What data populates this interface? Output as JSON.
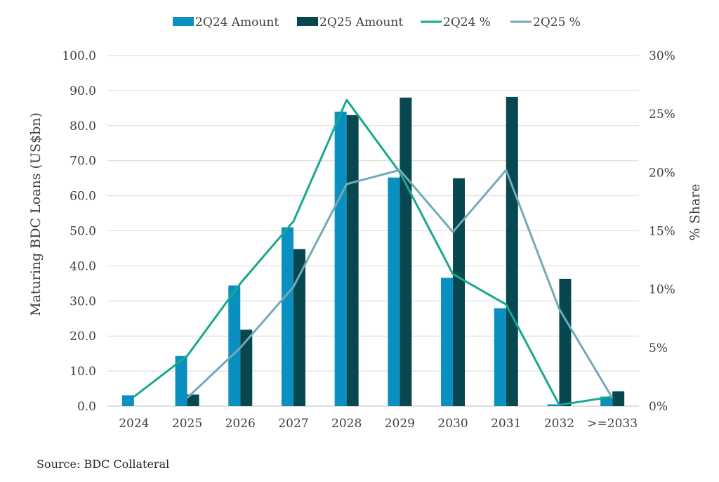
{
  "chart_data": {
    "type": "bar",
    "categories": [
      "2024",
      "2025",
      "2026",
      "2027",
      "2028",
      "2029",
      "2030",
      "2031",
      "2032",
      ">=2033"
    ],
    "series": [
      {
        "name": "2Q24 Amount",
        "kind": "bar",
        "axis": "left",
        "color": "#0a8fc1",
        "values": [
          3.1,
          14.3,
          34.4,
          51.0,
          84.0,
          65.2,
          36.6,
          27.9,
          0.5,
          2.7
        ]
      },
      {
        "name": "2Q25 Amount",
        "kind": "bar",
        "axis": "left",
        "color": "#07474f",
        "values": [
          0.0,
          3.3,
          21.8,
          44.8,
          83.0,
          88.0,
          65.0,
          88.2,
          36.3,
          4.2
        ]
      },
      {
        "name": "2Q24 %",
        "kind": "line",
        "axis": "right",
        "color": "#17a98f",
        "values": [
          0.8,
          4.3,
          10.5,
          15.8,
          26.2,
          20.0,
          11.3,
          8.7,
          0.1,
          0.8
        ]
      },
      {
        "name": "2Q25 %",
        "kind": "line",
        "axis": "right",
        "color": "#74a9b9",
        "values": [
          null,
          0.7,
          5.0,
          10.2,
          19.0,
          20.2,
          14.9,
          20.2,
          8.3,
          0.7
        ]
      }
    ],
    "yLeft": {
      "label": "Maturing BDC Loans (US$bn)",
      "min": 0,
      "max": 100,
      "step": 10,
      "ticks": [
        "0.0",
        "10.0",
        "20.0",
        "30.0",
        "40.0",
        "50.0",
        "60.0",
        "70.0",
        "80.0",
        "90.0",
        "100.0"
      ]
    },
    "yRight": {
      "label": "% Share",
      "min": 0,
      "max": 30,
      "step": 5,
      "ticks": [
        "0%",
        "5%",
        "10%",
        "15%",
        "20%",
        "25%",
        "30%"
      ]
    },
    "grid": true,
    "legend": "top"
  },
  "source": "Source: BDC Collateral"
}
